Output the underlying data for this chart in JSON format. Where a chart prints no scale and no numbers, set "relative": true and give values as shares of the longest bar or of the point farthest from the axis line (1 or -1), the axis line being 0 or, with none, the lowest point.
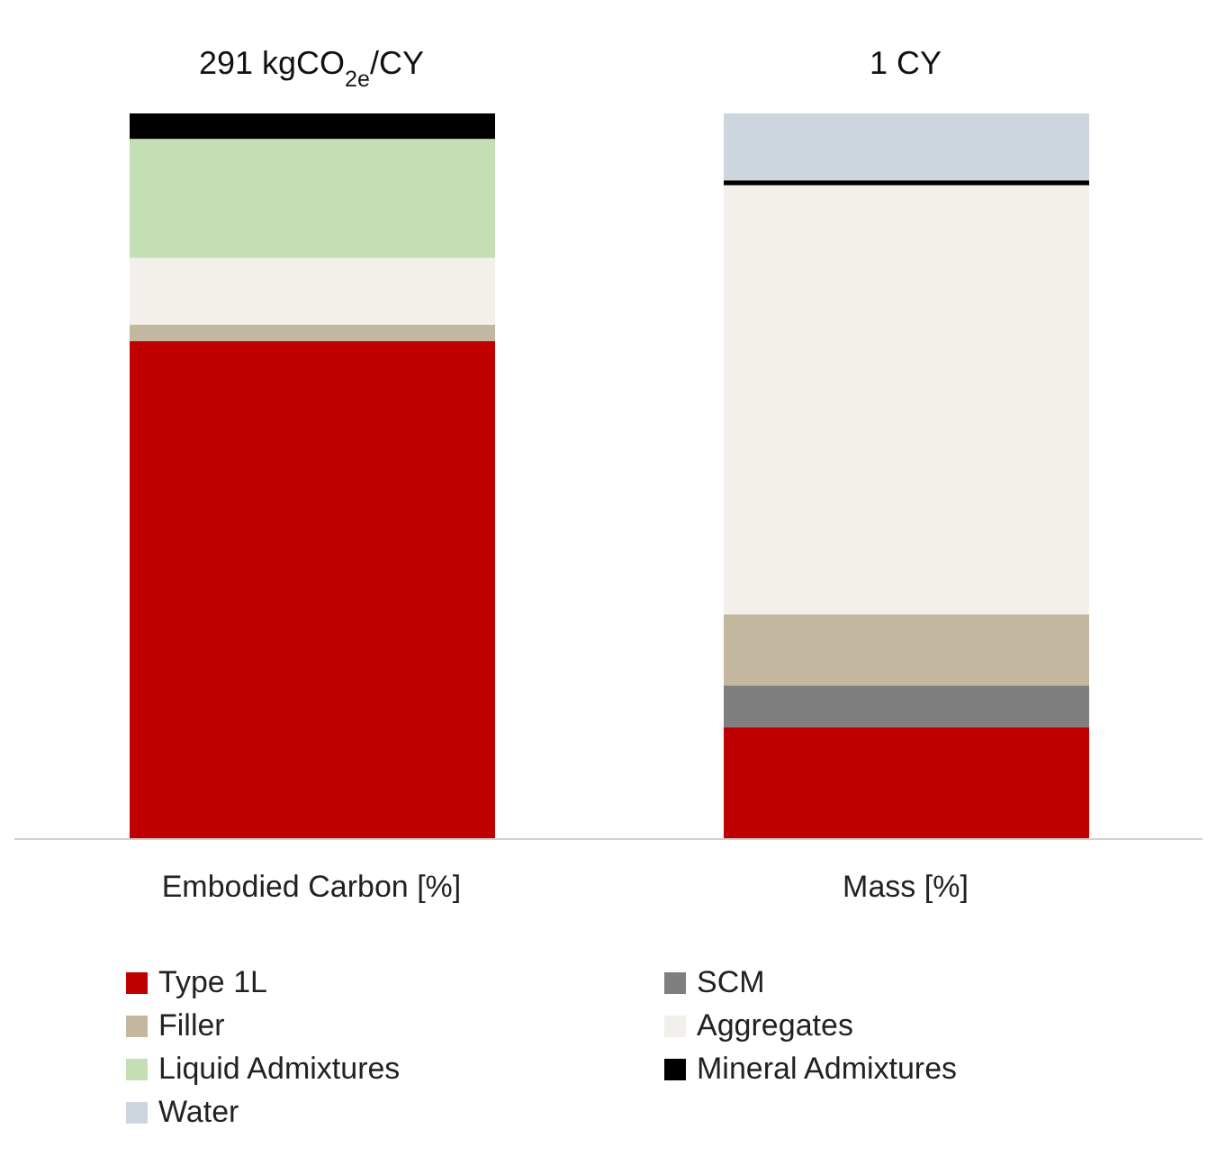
{
  "chart_data": {
    "type": "bar",
    "stacked": true,
    "relative": true,
    "categories": [
      "Embodied Carbon [%]",
      "Mass [%]"
    ],
    "series": [
      {
        "name": "Type 1L",
        "color": "#c00000",
        "values": [
          0.686,
          0.154
        ]
      },
      {
        "name": "SCM",
        "color": "#7f7f7f",
        "values": [
          0,
          0.058
        ]
      },
      {
        "name": "Filler",
        "color": "#c4b7a0",
        "values": [
          0.023,
          0.098
        ]
      },
      {
        "name": "Aggregates",
        "color": "#f3f0ec",
        "values": [
          0.092,
          0.591
        ]
      },
      {
        "name": "Liquid Admixtures",
        "color": "#c5dfb4",
        "values": [
          0.164,
          0
        ]
      },
      {
        "name": "Mineral Admixtures",
        "color": "#000000",
        "values": [
          0.035,
          0.007
        ]
      },
      {
        "name": "Water",
        "color": "#cdd5df",
        "values": [
          0,
          0.092
        ]
      }
    ],
    "annotations": [
      {
        "text": "291 kgCO$_{2e}$/CY",
        "x": "Embodied Carbon [%]",
        "y": 1
      },
      {
        "text": "1 CY",
        "x": "Mass [%]",
        "y": 1
      }
    ],
    "legend": "bottom",
    "grid": false
  }
}
